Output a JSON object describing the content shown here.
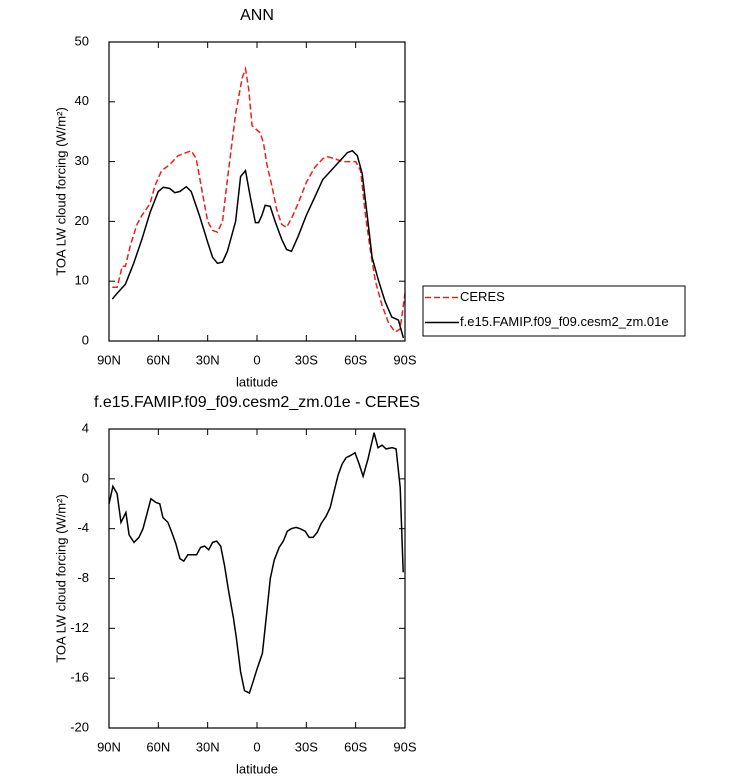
{
  "chart_data": [
    {
      "type": "line",
      "title": "ANN",
      "xlabel": "latitude",
      "ylabel": "TOA LW cloud forcing (W/m²)",
      "xlim": [
        90,
        -90
      ],
      "xticks": [
        {
          "value": 90,
          "label": "90N"
        },
        {
          "value": 60,
          "label": "60N"
        },
        {
          "value": 30,
          "label": "30N"
        },
        0,
        {
          "value": -30,
          "label": "30S"
        },
        {
          "value": -60,
          "label": "60S"
        },
        {
          "value": -90,
          "label": "90S"
        }
      ],
      "ylim": [
        0,
        50
      ],
      "yticks": [
        0,
        10,
        20,
        30,
        40,
        50
      ],
      "legend": "right",
      "series": [
        {
          "name": "CERES",
          "color": "#e8211f",
          "dashed": true,
          "x": [
            88,
            85,
            82,
            80,
            77,
            73,
            70,
            65,
            62,
            58,
            53,
            48,
            43,
            40,
            37,
            33,
            30,
            27,
            24,
            21,
            18,
            13,
            9,
            7,
            5,
            3,
            1,
            -2,
            -4,
            -6,
            -9,
            -12,
            -15,
            -18,
            -21,
            -25,
            -30,
            -35,
            -40,
            -43,
            -47,
            -52,
            -56,
            -60,
            -63,
            -66,
            -69,
            -72,
            -76,
            -80,
            -84,
            -87,
            -90
          ],
          "values": [
            9,
            9,
            12.5,
            12.5,
            16,
            19.5,
            21,
            23,
            26,
            28.5,
            29.5,
            31,
            31.5,
            31.8,
            30.5,
            24.5,
            20,
            18.5,
            18.2,
            20,
            27,
            38,
            44,
            45.5,
            42,
            36,
            35.5,
            34.8,
            33,
            29.5,
            26,
            22,
            19.5,
            19,
            20.5,
            23,
            26.5,
            29,
            30.5,
            30.8,
            30.5,
            30,
            30,
            30,
            28.5,
            21,
            15,
            10,
            6,
            3,
            1.5,
            2,
            8
          ]
        },
        {
          "name": "f.e15.FAMIP.f09_f09.cesm2_zm.01e",
          "color": "#000000",
          "dashed": false,
          "x": [
            88,
            85,
            80,
            75,
            70,
            65,
            60,
            57,
            53,
            50,
            47,
            43,
            40,
            35,
            30,
            27,
            24,
            21,
            18,
            13,
            10,
            7,
            4,
            1,
            -1,
            -3,
            -5,
            -8,
            -11,
            -15,
            -18,
            -21,
            -25,
            -30,
            -35,
            -40,
            -45,
            -50,
            -55,
            -58,
            -61,
            -64,
            -67,
            -70,
            -74,
            -78,
            -82,
            -86,
            -89
          ],
          "values": [
            7,
            8,
            9.5,
            13,
            17,
            21.5,
            25,
            25.7,
            25.5,
            24.8,
            25,
            25.8,
            25,
            21,
            16.5,
            14,
            13,
            13.2,
            15,
            20,
            27.5,
            28.5,
            24,
            19.8,
            19.8,
            21,
            22.7,
            22.5,
            20,
            17,
            15.3,
            15,
            17.5,
            21,
            24,
            27,
            28.5,
            30,
            31.5,
            31.8,
            31,
            28,
            21,
            14,
            10,
            6.5,
            4,
            3.5,
            0.5
          ]
        }
      ]
    },
    {
      "type": "line",
      "title": "f.e15.FAMIP.f09_f09.cesm2_zm.01e - CERES",
      "xlabel": "latitude",
      "ylabel": "TOA LW cloud forcing (W/m²)",
      "xlim": [
        90,
        -90
      ],
      "xticks": [
        {
          "value": 90,
          "label": "90N"
        },
        {
          "value": 60,
          "label": "60N"
        },
        {
          "value": 30,
          "label": "30N"
        },
        0,
        {
          "value": -30,
          "label": "30S"
        },
        {
          "value": -60,
          "label": "60S"
        },
        {
          "value": -90,
          "label": "90S"
        }
      ],
      "ylim": [
        -20,
        4
      ],
      "yticks": [
        -20,
        -16,
        -12,
        -8,
        -4,
        0,
        4
      ],
      "color": "#000000",
      "x": [
        90,
        87.6,
        85.1,
        82.7,
        79.7,
        77.8,
        74.8,
        71.8,
        69.3,
        66.9,
        64.5,
        61.5,
        59.1,
        57.2,
        54.2,
        51.8,
        49.4,
        46.9,
        44.5,
        42.1,
        39.1,
        36.7,
        34.3,
        31.8,
        29.4,
        27,
        24.5,
        22.1,
        19.7,
        17.3,
        14.3,
        12.5,
        10,
        7.6,
        4.6,
        2.2,
        -0.2,
        -3.3,
        -5.7,
        -8.1,
        -10.5,
        -13.5,
        -16,
        -18.4,
        -20.8,
        -23.8,
        -26.2,
        -29.3,
        -31.7,
        -34.1,
        -36.6,
        -39,
        -42,
        -44.5,
        -46.9,
        -49.3,
        -51.8,
        -54.2,
        -57.2,
        -59.6,
        -62.1,
        -64.5,
        -67.5,
        -71.2,
        -73.6,
        -76.1,
        -78.5,
        -82.2,
        -84.6,
        -87.1,
        -88.9
      ],
      "values": [
        -2,
        -0.6,
        -1.2,
        -3.5,
        -2.7,
        -4.5,
        -5.1,
        -4.7,
        -4,
        -2.8,
        -1.6,
        -1.9,
        -2,
        -3.1,
        -3.5,
        -4.3,
        -5.2,
        -6.4,
        -6.6,
        -6.1,
        -6.1,
        -6.1,
        -5.5,
        -5.4,
        -5.7,
        -5.1,
        -5,
        -5.4,
        -7,
        -9,
        -11.2,
        -12.8,
        -15.5,
        -17,
        -17.2,
        -16.2,
        -15.2,
        -14,
        -11,
        -8,
        -6.5,
        -5.5,
        -5,
        -4.2,
        -4,
        -3.9,
        -4,
        -4.2,
        -4.7,
        -4.7,
        -4.3,
        -3.6,
        -3,
        -2.3,
        -1,
        0.3,
        1.2,
        1.7,
        1.9,
        2.1,
        1.2,
        0.2,
        1.6,
        3.7,
        2.5,
        2.7,
        2.4,
        2.5,
        2.4,
        -0.7,
        -7.5
      ]
    }
  ]
}
